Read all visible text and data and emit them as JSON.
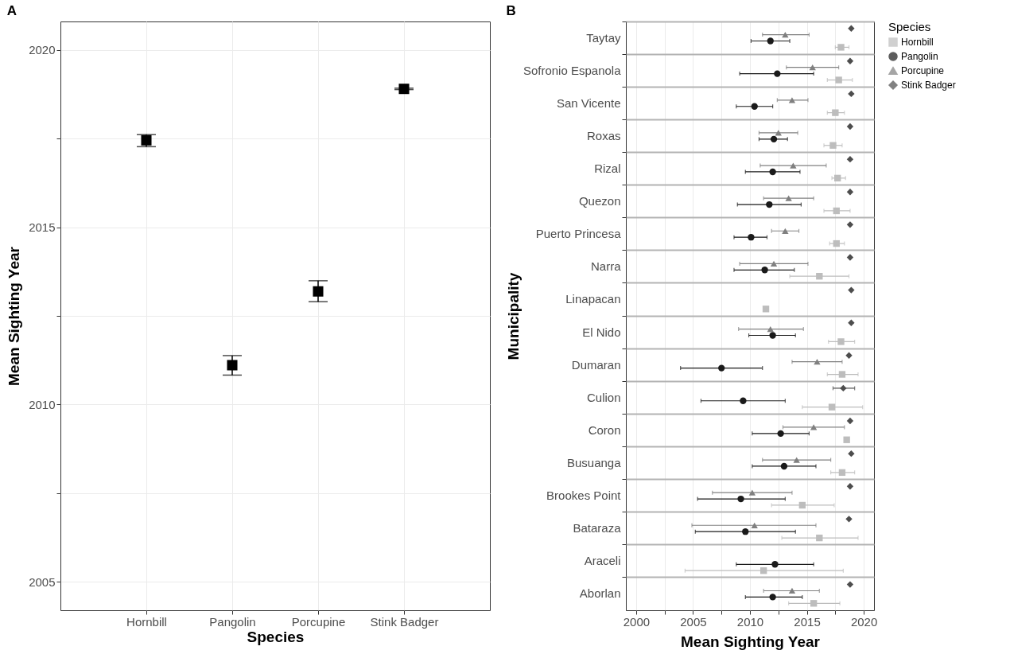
{
  "chart_data": [
    {
      "type": "scatter",
      "annotations": [
        "A"
      ],
      "xlabel": "Species",
      "ylabel": "Mean Sighting Year",
      "categories": [
        "Hornbill",
        "Pangolin",
        "Porcupine",
        "Stink Badger"
      ],
      "values": [
        2017.45,
        2011.11,
        2013.19,
        2018.9
      ],
      "errors": [
        [
          2017.27,
          2017.61
        ],
        [
          2010.83,
          2011.38
        ],
        [
          2012.9,
          2013.49
        ],
        [
          2018.88,
          2018.92
        ]
      ],
      "color": "#000000",
      "marker": "square",
      "ylim": [
        2004.2,
        2020.8
      ],
      "yticks": [
        2005,
        {
          "value": 2007.5,
          "label": null
        },
        2010,
        {
          "value": 2012.5,
          "label": null
        },
        2015,
        {
          "value": 2017.5,
          "label": null
        },
        2020
      ],
      "grid": true
    },
    {
      "type": "scatter",
      "orientation": "horizontal",
      "annotations": [
        "B"
      ],
      "xlabel": "Mean Sighting Year",
      "ylabel": "Municipality",
      "legend_title": "Species",
      "legend": "right",
      "categories": [
        "Taytay",
        "Sofronio Espanola",
        "San Vicente",
        "Roxas",
        "Rizal",
        "Quezon",
        "Puerto Princesa",
        "Narra",
        "Linapacan",
        "El Nido",
        "Dumaran",
        "Culion",
        "Coron",
        "Busuanga",
        "Brookes Point",
        "Bataraza",
        "Araceli",
        "Aborlan"
      ],
      "xlim": [
        1999.1,
        2020.9
      ],
      "xticks": [
        2000,
        {
          "value": 2002.5,
          "label": null
        },
        2005,
        {
          "value": 2007.5,
          "label": null
        },
        2010,
        {
          "value": 2012.5,
          "label": null
        },
        2015,
        {
          "value": 2017.5,
          "label": null
        },
        2020
      ],
      "grid": true,
      "series": [
        {
          "name": "Hornbill",
          "color": "#bdbdbd",
          "marker": "square",
          "values": [
            2018.0,
            2017.8,
            2017.5,
            2017.3,
            2017.7,
            2017.6,
            2017.6,
            2016.1,
            2011.4,
            2018.0,
            2018.1,
            2017.2,
            2018.5,
            2018.1,
            2014.6,
            2016.1,
            2011.2,
            2015.6
          ],
          "errors": [
            [
              2017.5,
              2018.7
            ],
            [
              2016.8,
              2019.0
            ],
            [
              2016.8,
              2018.3
            ],
            [
              2016.5,
              2018.1
            ],
            [
              2017.2,
              2018.4
            ],
            [
              2016.5,
              2018.8
            ],
            [
              2017.0,
              2018.3
            ],
            [
              2013.5,
              2018.7
            ],
            null,
            [
              2016.9,
              2019.2
            ],
            [
              2016.8,
              2019.5
            ],
            [
              2014.6,
              2019.9
            ],
            null,
            [
              2017.1,
              2019.2
            ],
            [
              2011.9,
              2017.4
            ],
            [
              2012.8,
              2019.5
            ],
            [
              2004.3,
              2018.2
            ],
            [
              2013.4,
              2017.9
            ]
          ]
        },
        {
          "name": "Pangolin",
          "color": "#1a1a1a",
          "marker": "circle",
          "values": [
            2011.8,
            2012.4,
            2010.4,
            2012.1,
            2012.0,
            2011.7,
            2010.1,
            2011.3,
            null,
            2012.0,
            2007.5,
            2009.4,
            2012.7,
            2013.0,
            2009.2,
            2009.6,
            2012.2,
            2012.0
          ],
          "errors": [
            [
              2010.1,
              2013.5
            ],
            [
              2009.1,
              2015.6
            ],
            [
              2008.8,
              2012.0
            ],
            [
              2010.8,
              2013.3
            ],
            [
              2009.6,
              2014.4
            ],
            [
              2008.9,
              2014.5
            ],
            [
              2008.6,
              2011.5
            ],
            [
              2008.6,
              2013.9
            ],
            null,
            [
              2009.9,
              2014.0
            ],
            [
              2003.9,
              2011.1
            ],
            [
              2005.7,
              2013.1
            ],
            [
              2010.2,
              2015.2
            ],
            [
              2010.2,
              2015.8
            ],
            [
              2005.4,
              2013.1
            ],
            [
              2005.2,
              2014.0
            ],
            [
              2008.8,
              2015.6
            ],
            [
              2009.6,
              2014.6
            ]
          ]
        },
        {
          "name": "Porcupine",
          "color": "#808080",
          "marker": "triangle",
          "values": [
            2013.1,
            2015.5,
            2013.7,
            2012.5,
            2013.8,
            2013.4,
            2013.1,
            2012.1,
            null,
            2011.8,
            2015.9,
            null,
            2015.6,
            2014.1,
            2010.2,
            2010.4,
            null,
            2013.7
          ],
          "errors": [
            [
              2011.1,
              2015.2
            ],
            [
              2013.2,
              2017.8
            ],
            [
              2012.4,
              2015.1
            ],
            [
              2010.8,
              2014.2
            ],
            [
              2010.9,
              2016.7
            ],
            [
              2011.2,
              2015.6
            ],
            [
              2011.9,
              2014.3
            ],
            [
              2009.1,
              2015.1
            ],
            null,
            [
              2009.0,
              2014.7
            ],
            [
              2013.7,
              2018.1
            ],
            null,
            [
              2012.9,
              2018.3
            ],
            [
              2011.1,
              2017.1
            ],
            [
              2006.7,
              2013.7
            ],
            [
              2004.9,
              2015.8
            ],
            null,
            [
              2011.2,
              2016.1
            ]
          ]
        },
        {
          "name": "Stink Badger",
          "color": "#4d4d4d",
          "marker": "diamond",
          "values": [
            2018.9,
            2018.8,
            2018.9,
            2018.8,
            2018.8,
            2018.8,
            2018.8,
            2018.8,
            2018.9,
            2018.9,
            2018.7,
            2018.2,
            2018.8,
            2018.9,
            2018.8,
            2018.7,
            null,
            2018.8
          ],
          "errors": [
            null,
            null,
            null,
            null,
            null,
            null,
            null,
            null,
            null,
            null,
            null,
            [
              2017.3,
              2019.2
            ],
            null,
            null,
            null,
            null,
            null,
            null
          ]
        }
      ]
    }
  ]
}
